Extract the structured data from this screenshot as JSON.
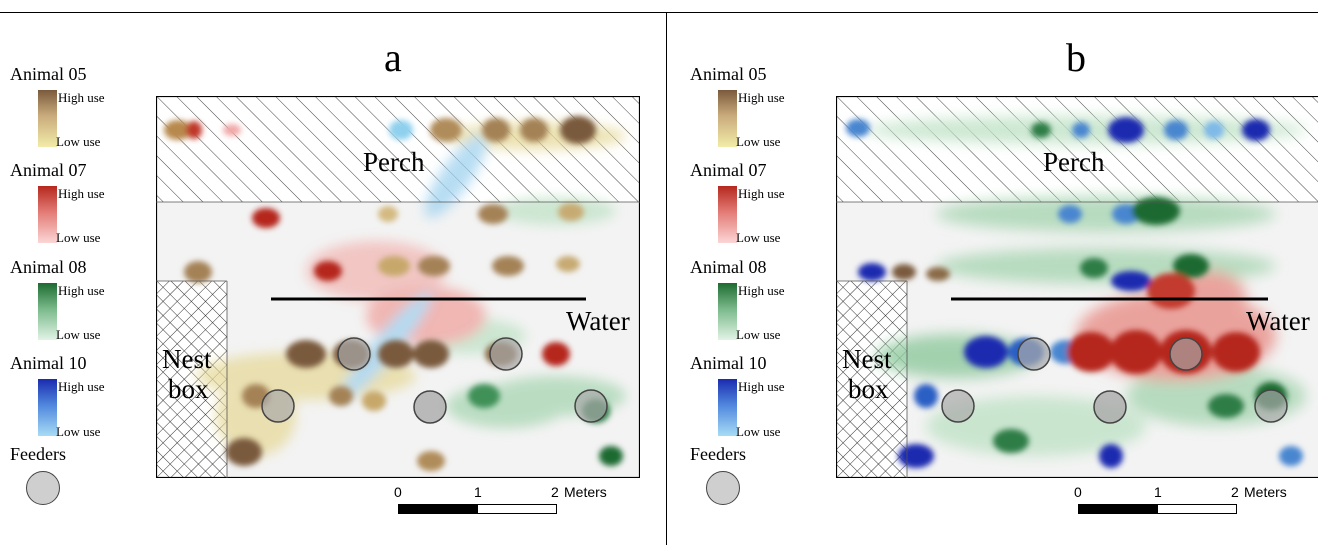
{
  "panels": [
    {
      "letter": "a",
      "legend": [
        {
          "title": "Animal 05",
          "high": "High use",
          "low": "Low use",
          "color_high": "#7a5a3c",
          "color_low": "#f2eba8"
        },
        {
          "title": "Animal 07",
          "high": "High use",
          "low": "Low use",
          "color_high": "#b5281e",
          "color_low": "#fbd6d6"
        },
        {
          "title": "Animal 08",
          "high": "High use",
          "low": "Low use",
          "color_high": "#1e6b32",
          "color_low": "#e2f3e6"
        },
        {
          "title": "Animal 10",
          "high": "High use",
          "low": "Low use",
          "color_high": "#1a2bb0",
          "color_low": "#a7dcf5"
        }
      ],
      "feeders_label": "Feeders",
      "map": {
        "perch": "Perch",
        "water": "Water",
        "nest_line1": "Nest",
        "nest_line2": "box"
      },
      "scale": {
        "t0": "0",
        "t1": "1",
        "t2": "2",
        "unit": "Meters"
      }
    },
    {
      "letter": "b",
      "legend": [
        {
          "title": "Animal 05",
          "high": "High use",
          "low": "Low use",
          "color_high": "#7a5a3c",
          "color_low": "#f2eba8"
        },
        {
          "title": "Animal 07",
          "high": "High use",
          "low": "Low use",
          "color_high": "#b5281e",
          "color_low": "#fbd6d6"
        },
        {
          "title": "Animal 08",
          "high": "High use",
          "low": "Low use",
          "color_high": "#1e6b32",
          "color_low": "#e2f3e6"
        },
        {
          "title": "Animal 10",
          "high": "High use",
          "low": "Low use",
          "color_high": "#1a2bb0",
          "color_low": "#a7dcf5"
        }
      ],
      "feeders_label": "Feeders",
      "map": {
        "perch": "Perch",
        "water": "Water",
        "nest_line1": "Nest",
        "nest_line2": "box"
      },
      "scale": {
        "t0": "0",
        "t1": "1",
        "t2": "2",
        "unit": "Meters"
      }
    }
  ]
}
